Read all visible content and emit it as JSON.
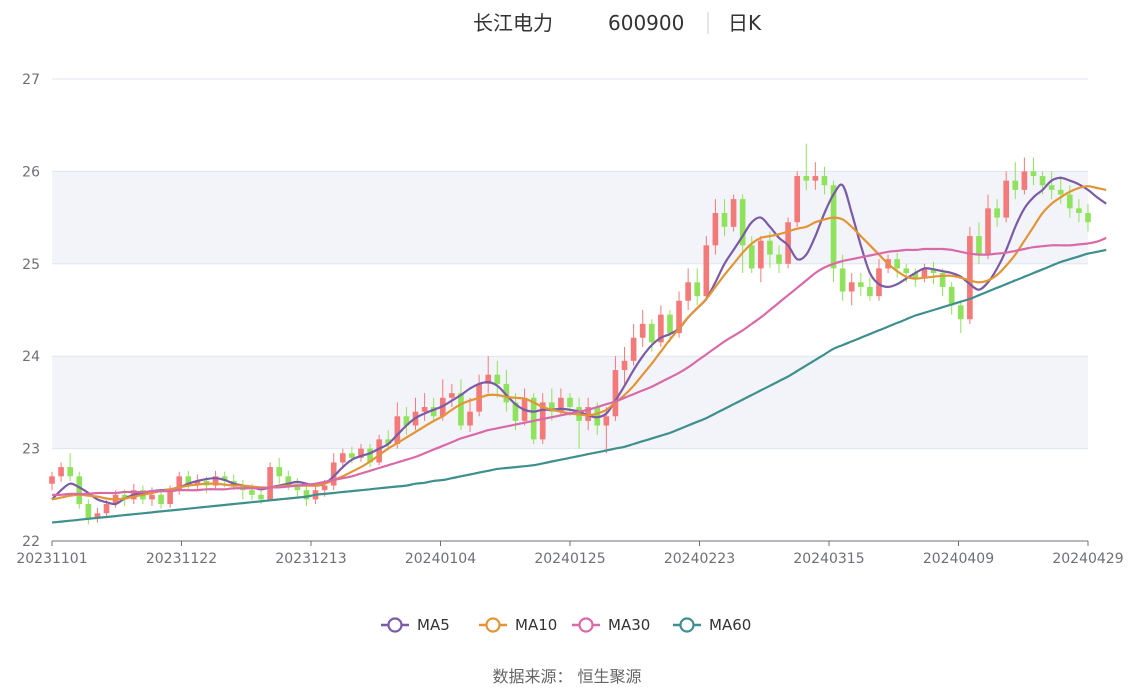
{
  "header": {
    "name": "长江电力",
    "code": "600900",
    "period": "日K"
  },
  "source_text": "数据来源：  恒生聚源",
  "colors": {
    "up": "#f47a7a",
    "down": "#8fe35c",
    "ma5": "#7b5aa6",
    "ma10": "#e39437",
    "ma30": "#d96aa8",
    "ma60": "#3f8f8f",
    "band": "#f2f4fa",
    "grid": "#e0e6f1",
    "axis": "#6e7079"
  },
  "chart_data": {
    "type": "candlestick",
    "title": "长江电力 600900 日K",
    "ylim": [
      22,
      27
    ],
    "yticks": [
      "22",
      "23",
      "24",
      "25",
      "26",
      "27"
    ],
    "xticks": [
      "20231101",
      "20231122",
      "20231213",
      "20240104",
      "20240125",
      "20240223",
      "20240315",
      "20240409",
      "20240429"
    ],
    "legend": [
      "MA5",
      "MA10",
      "MA30",
      "MA60"
    ],
    "legend_position": "bottom",
    "candles": [
      [
        22.62,
        22.7,
        22.55,
        22.75
      ],
      [
        22.7,
        22.8,
        22.64,
        22.85
      ],
      [
        22.8,
        22.7,
        22.65,
        22.95
      ],
      [
        22.7,
        22.4,
        22.35,
        22.75
      ],
      [
        22.4,
        22.25,
        22.18,
        22.45
      ],
      [
        22.25,
        22.3,
        22.2,
        22.36
      ],
      [
        22.3,
        22.4,
        22.26,
        22.44
      ],
      [
        22.4,
        22.5,
        22.36,
        22.55
      ],
      [
        22.5,
        22.45,
        22.38,
        22.56
      ],
      [
        22.45,
        22.55,
        22.4,
        22.62
      ],
      [
        22.55,
        22.45,
        22.4,
        22.6
      ],
      [
        22.45,
        22.5,
        22.38,
        22.58
      ],
      [
        22.5,
        22.4,
        22.35,
        22.56
      ],
      [
        22.4,
        22.55,
        22.36,
        22.6
      ],
      [
        22.55,
        22.7,
        22.5,
        22.75
      ],
      [
        22.7,
        22.6,
        22.54,
        22.76
      ],
      [
        22.6,
        22.65,
        22.55,
        22.72
      ],
      [
        22.65,
        22.6,
        22.52,
        22.7
      ],
      [
        22.6,
        22.7,
        22.55,
        22.76
      ],
      [
        22.7,
        22.65,
        22.58,
        22.75
      ],
      [
        22.65,
        22.6,
        22.55,
        22.72
      ],
      [
        22.6,
        22.55,
        22.45,
        22.66
      ],
      [
        22.55,
        22.5,
        22.44,
        22.62
      ],
      [
        22.5,
        22.45,
        22.4,
        22.56
      ],
      [
        22.45,
        22.8,
        22.44,
        22.85
      ],
      [
        22.8,
        22.7,
        22.62,
        22.9
      ],
      [
        22.7,
        22.62,
        22.55,
        22.76
      ],
      [
        22.62,
        22.55,
        22.48,
        22.68
      ],
      [
        22.55,
        22.45,
        22.38,
        22.6
      ],
      [
        22.45,
        22.55,
        22.4,
        22.6
      ],
      [
        22.55,
        22.6,
        22.48,
        22.66
      ],
      [
        22.6,
        22.85,
        22.55,
        22.95
      ],
      [
        22.85,
        22.95,
        22.78,
        23.0
      ],
      [
        22.95,
        22.9,
        22.84,
        23.02
      ],
      [
        22.9,
        23.0,
        22.86,
        23.05
      ],
      [
        23.0,
        22.85,
        22.8,
        23.05
      ],
      [
        22.85,
        23.1,
        22.82,
        23.15
      ],
      [
        23.1,
        23.05,
        22.98,
        23.2
      ],
      [
        23.05,
        23.35,
        23.0,
        23.5
      ],
      [
        23.35,
        23.25,
        23.15,
        23.45
      ],
      [
        23.25,
        23.4,
        23.2,
        23.55
      ],
      [
        23.4,
        23.45,
        23.3,
        23.6
      ],
      [
        23.45,
        23.35,
        23.28,
        23.55
      ],
      [
        23.35,
        23.55,
        23.3,
        23.75
      ],
      [
        23.55,
        23.6,
        23.45,
        23.7
      ],
      [
        23.6,
        23.25,
        23.2,
        23.75
      ],
      [
        23.25,
        23.4,
        23.18,
        23.55
      ],
      [
        23.4,
        23.7,
        23.35,
        23.8
      ],
      [
        23.7,
        23.8,
        23.6,
        24.0
      ],
      [
        23.8,
        23.7,
        23.55,
        23.95
      ],
      [
        23.7,
        23.5,
        23.4,
        23.85
      ],
      [
        23.5,
        23.3,
        23.2,
        23.6
      ],
      [
        23.3,
        23.55,
        23.25,
        23.65
      ],
      [
        23.55,
        23.1,
        23.05,
        23.6
      ],
      [
        23.1,
        23.5,
        23.05,
        23.6
      ],
      [
        23.5,
        23.4,
        23.3,
        23.65
      ],
      [
        23.4,
        23.55,
        23.35,
        23.65
      ],
      [
        23.55,
        23.45,
        23.35,
        23.6
      ],
      [
        23.45,
        23.3,
        23.0,
        23.55
      ],
      [
        23.3,
        23.45,
        23.2,
        23.55
      ],
      [
        23.45,
        23.25,
        23.15,
        23.5
      ],
      [
        23.25,
        23.35,
        22.95,
        23.45
      ],
      [
        23.35,
        23.85,
        23.3,
        24.0
      ],
      [
        23.85,
        23.95,
        23.7,
        24.1
      ],
      [
        23.95,
        24.2,
        23.9,
        24.35
      ],
      [
        24.2,
        24.35,
        24.1,
        24.5
      ],
      [
        24.35,
        24.15,
        24.05,
        24.4
      ],
      [
        24.15,
        24.45,
        24.1,
        24.55
      ],
      [
        24.45,
        24.25,
        24.15,
        24.5
      ],
      [
        24.25,
        24.6,
        24.2,
        24.7
      ],
      [
        24.6,
        24.8,
        24.5,
        24.95
      ],
      [
        24.8,
        24.65,
        24.55,
        24.95
      ],
      [
        24.65,
        25.2,
        24.6,
        25.3
      ],
      [
        25.2,
        25.55,
        25.1,
        25.7
      ],
      [
        25.55,
        25.4,
        25.3,
        25.7
      ],
      [
        25.4,
        25.7,
        25.35,
        25.75
      ],
      [
        25.7,
        25.2,
        24.9,
        25.75
      ],
      [
        25.2,
        24.95,
        24.9,
        25.3
      ],
      [
        24.95,
        25.25,
        24.8,
        25.3
      ],
      [
        25.25,
        25.1,
        24.95,
        25.35
      ],
      [
        25.1,
        25.0,
        24.9,
        25.2
      ],
      [
        25.0,
        25.45,
        24.95,
        25.5
      ],
      [
        25.45,
        25.95,
        25.4,
        26.0
      ],
      [
        25.95,
        25.9,
        25.8,
        26.3
      ],
      [
        25.9,
        25.95,
        25.8,
        26.1
      ],
      [
        25.95,
        25.85,
        25.75,
        26.05
      ],
      [
        25.85,
        24.95,
        24.8,
        25.9
      ],
      [
        24.95,
        24.7,
        24.6,
        25.1
      ],
      [
        24.7,
        24.8,
        24.55,
        24.9
      ],
      [
        24.8,
        24.75,
        24.65,
        24.9
      ],
      [
        24.75,
        24.65,
        24.6,
        24.85
      ],
      [
        24.65,
        24.95,
        24.6,
        25.05
      ],
      [
        24.95,
        25.05,
        24.9,
        25.1
      ],
      [
        25.05,
        24.95,
        24.85,
        25.12
      ],
      [
        24.95,
        24.9,
        24.8,
        25.0
      ],
      [
        24.9,
        24.85,
        24.75,
        24.95
      ],
      [
        24.85,
        24.95,
        24.8,
        25.0
      ],
      [
        24.95,
        24.9,
        24.78,
        25.02
      ],
      [
        24.9,
        24.75,
        24.65,
        24.95
      ],
      [
        24.75,
        24.55,
        24.45,
        24.8
      ],
      [
        24.55,
        24.4,
        24.25,
        24.6
      ],
      [
        24.4,
        25.3,
        24.35,
        25.4
      ],
      [
        25.3,
        25.1,
        25.0,
        25.45
      ],
      [
        25.1,
        25.6,
        25.05,
        25.75
      ],
      [
        25.6,
        25.5,
        25.4,
        25.7
      ],
      [
        25.5,
        25.9,
        25.45,
        26.0
      ],
      [
        25.9,
        25.8,
        25.7,
        26.1
      ],
      [
        25.8,
        26.0,
        25.75,
        26.15
      ],
      [
        26.0,
        25.95,
        25.85,
        26.15
      ],
      [
        25.95,
        25.85,
        25.75,
        26.0
      ],
      [
        25.85,
        25.8,
        25.7,
        26.0
      ],
      [
        25.8,
        25.75,
        25.65,
        25.95
      ],
      [
        25.75,
        25.6,
        25.5,
        25.85
      ],
      [
        25.6,
        25.55,
        25.45,
        25.7
      ],
      [
        25.55,
        25.45,
        25.35,
        25.65
      ]
    ],
    "series": [
      {
        "name": "MA5",
        "values": [
          22.45,
          22.55,
          22.62,
          22.58,
          22.52,
          22.45,
          22.42,
          22.4,
          22.46,
          22.5,
          22.52,
          22.54,
          22.55,
          22.56,
          22.58,
          22.62,
          22.65,
          22.67,
          22.68,
          22.66,
          22.62,
          22.6,
          22.58,
          22.56,
          22.58,
          22.6,
          22.62,
          22.64,
          22.62,
          22.6,
          22.62,
          22.7,
          22.8,
          22.88,
          22.92,
          22.95,
          23.0,
          23.05,
          23.15,
          23.25,
          23.33,
          23.38,
          23.42,
          23.46,
          23.52,
          23.58,
          23.65,
          23.7,
          23.72,
          23.68,
          23.58,
          23.48,
          23.42,
          23.4,
          23.42,
          23.42,
          23.43,
          23.42,
          23.4,
          23.36,
          23.34,
          23.38,
          23.52,
          23.68,
          23.85,
          24.0,
          24.12,
          24.2,
          24.24,
          24.3,
          24.42,
          24.52,
          24.62,
          24.8,
          25.0,
          25.15,
          25.3,
          25.45,
          25.5,
          25.4,
          25.28,
          25.2,
          25.05,
          25.1,
          25.3,
          25.55,
          25.75,
          25.85,
          25.55,
          25.2,
          24.9,
          24.78,
          24.75,
          24.78,
          24.84,
          24.9,
          24.95,
          24.94,
          24.92,
          24.9,
          24.86,
          24.78,
          24.72,
          24.8,
          24.95,
          25.15,
          25.4,
          25.6,
          25.72,
          25.8,
          25.9,
          25.93,
          25.9,
          25.86,
          25.8,
          25.72,
          25.65
        ]
      },
      {
        "name": "MA10",
        "values": [
          22.45,
          22.47,
          22.49,
          22.5,
          22.49,
          22.48,
          22.46,
          22.45,
          22.46,
          22.48,
          22.5,
          22.52,
          22.54,
          22.56,
          22.58,
          22.6,
          22.61,
          22.62,
          22.62,
          22.61,
          22.6,
          22.6,
          22.59,
          22.58,
          22.58,
          22.59,
          22.6,
          22.6,
          22.6,
          22.6,
          22.62,
          22.66,
          22.7,
          22.75,
          22.8,
          22.86,
          22.93,
          23.0,
          23.06,
          23.12,
          23.18,
          23.24,
          23.3,
          23.35,
          23.42,
          23.48,
          23.52,
          23.55,
          23.58,
          23.58,
          23.56,
          23.55,
          23.54,
          23.5,
          23.45,
          23.42,
          23.4,
          23.38,
          23.37,
          23.36,
          23.38,
          23.42,
          23.5,
          23.58,
          23.68,
          23.8,
          23.92,
          24.05,
          24.18,
          24.3,
          24.42,
          24.52,
          24.62,
          24.75,
          24.88,
          25.0,
          25.12,
          25.22,
          25.28,
          25.3,
          25.32,
          25.35,
          25.38,
          25.4,
          25.45,
          25.48,
          25.5,
          25.48,
          25.4,
          25.3,
          25.2,
          25.1,
          25.0,
          24.92,
          24.86,
          24.84,
          24.85,
          24.86,
          24.87,
          24.87,
          24.85,
          24.82,
          24.8,
          24.82,
          24.88,
          24.98,
          25.1,
          25.25,
          25.4,
          25.55,
          25.65,
          25.72,
          25.78,
          25.82,
          25.84,
          25.82,
          25.8
        ]
      },
      {
        "name": "MA30",
        "values": [
          22.5,
          22.5,
          22.51,
          22.51,
          22.51,
          22.52,
          22.52,
          22.52,
          22.53,
          22.53,
          22.53,
          22.54,
          22.54,
          22.54,
          22.55,
          22.55,
          22.55,
          22.56,
          22.56,
          22.56,
          22.57,
          22.57,
          22.57,
          22.57,
          22.58,
          22.58,
          22.59,
          22.6,
          22.61,
          22.62,
          22.64,
          22.66,
          22.68,
          22.7,
          22.73,
          22.76,
          22.79,
          22.82,
          22.85,
          22.88,
          22.91,
          22.95,
          22.99,
          23.03,
          23.07,
          23.11,
          23.14,
          23.17,
          23.2,
          23.22,
          23.24,
          23.26,
          23.28,
          23.3,
          23.32,
          23.34,
          23.36,
          23.38,
          23.4,
          23.42,
          23.45,
          23.48,
          23.51,
          23.55,
          23.59,
          23.63,
          23.67,
          23.72,
          23.77,
          23.82,
          23.88,
          23.95,
          24.02,
          24.09,
          24.16,
          24.22,
          24.28,
          24.35,
          24.42,
          24.5,
          24.58,
          24.66,
          24.74,
          24.82,
          24.9,
          24.96,
          25.0,
          25.03,
          25.05,
          25.07,
          25.09,
          25.11,
          25.13,
          25.14,
          25.15,
          25.15,
          25.16,
          25.16,
          25.16,
          25.15,
          25.13,
          25.11,
          25.1,
          25.1,
          25.11,
          25.12,
          25.14,
          25.16,
          25.18,
          25.19,
          25.2,
          25.2,
          25.2,
          25.21,
          25.22,
          25.24,
          25.28
        ]
      },
      {
        "name": "MA60",
        "values": [
          22.2,
          22.21,
          22.22,
          22.23,
          22.24,
          22.25,
          22.26,
          22.27,
          22.28,
          22.29,
          22.3,
          22.31,
          22.32,
          22.33,
          22.34,
          22.35,
          22.36,
          22.37,
          22.38,
          22.39,
          22.4,
          22.41,
          22.42,
          22.43,
          22.44,
          22.45,
          22.46,
          22.47,
          22.48,
          22.5,
          22.51,
          22.52,
          22.53,
          22.54,
          22.55,
          22.56,
          22.57,
          22.58,
          22.59,
          22.6,
          22.62,
          22.63,
          22.65,
          22.66,
          22.68,
          22.7,
          22.72,
          22.74,
          22.76,
          22.78,
          22.79,
          22.8,
          22.81,
          22.82,
          22.84,
          22.86,
          22.88,
          22.9,
          22.92,
          22.94,
          22.96,
          22.98,
          23.0,
          23.02,
          23.05,
          23.08,
          23.11,
          23.14,
          23.17,
          23.21,
          23.25,
          23.29,
          23.33,
          23.38,
          23.43,
          23.48,
          23.53,
          23.58,
          23.63,
          23.68,
          23.73,
          23.78,
          23.84,
          23.9,
          23.96,
          24.02,
          24.08,
          24.12,
          24.16,
          24.2,
          24.24,
          24.28,
          24.32,
          24.36,
          24.4,
          24.44,
          24.47,
          24.5,
          24.53,
          24.56,
          24.59,
          24.62,
          24.66,
          24.7,
          24.74,
          24.78,
          24.82,
          24.86,
          24.9,
          24.94,
          24.98,
          25.02,
          25.05,
          25.08,
          25.11,
          25.13,
          25.15
        ]
      }
    ]
  }
}
